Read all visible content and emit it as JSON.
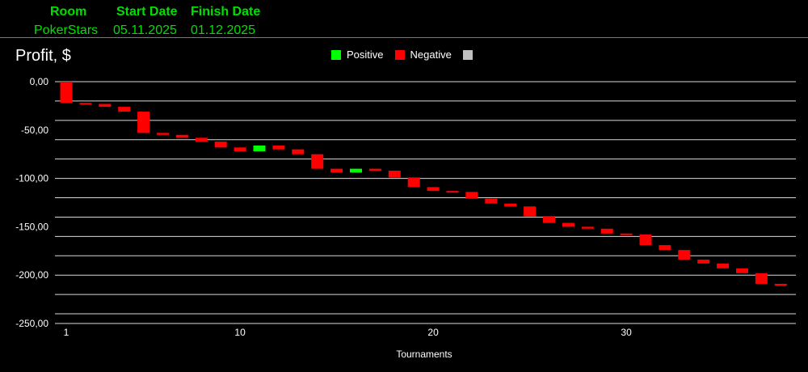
{
  "header": {
    "columns": [
      {
        "label": "Room",
        "value": "PokerStars"
      },
      {
        "label": "Start Date",
        "value": "05.11.2025"
      },
      {
        "label": "Finish Date",
        "value": "01.12.2025"
      }
    ]
  },
  "colors": {
    "positive": "#00ff00",
    "negative": "#ff0000",
    "neutral": "#c0c0c0",
    "header_text": "#00e000"
  },
  "chart_data": {
    "type": "bar",
    "subtype": "waterfall",
    "title": "Profit, $",
    "xlabel": "Tournaments",
    "ylabel": "",
    "ylim": [
      -250,
      0
    ],
    "y_ticks": [
      0,
      -50,
      -100,
      -150,
      -200,
      -250
    ],
    "y_tick_labels": [
      "0,00",
      "-50,00",
      "-100,00",
      "-150,00",
      "-200,00",
      "-250,00"
    ],
    "x_ticks": [
      1,
      10,
      20,
      30
    ],
    "legend": [
      {
        "name": "Positive",
        "color": "#00ff00"
      },
      {
        "name": "Negative",
        "color": "#ff0000"
      },
      {
        "name": "",
        "color": "#c0c0c0"
      }
    ],
    "legend_position": "top-center",
    "grid": true,
    "x": [
      1,
      2,
      3,
      4,
      5,
      6,
      7,
      8,
      9,
      10,
      11,
      12,
      13,
      14,
      15,
      16,
      17,
      18,
      19,
      20,
      21,
      22,
      23,
      24,
      25,
      26,
      27,
      28,
      29,
      30,
      31,
      32,
      33,
      34,
      35,
      36,
      37,
      38
    ],
    "values": [
      -22,
      -1,
      -3,
      -5,
      -22,
      -2,
      -3,
      -4,
      -6,
      -4,
      6,
      -4,
      -5,
      -15,
      -4,
      4,
      -2,
      -7,
      -10,
      -4,
      -1,
      -7,
      -5,
      -3,
      -10,
      -7,
      -4,
      -2,
      -5,
      -1,
      -11,
      -5,
      -10,
      -4,
      -5,
      -5,
      -11,
      -2
    ],
    "cumulative": [
      -22,
      -23,
      -26,
      -31,
      -53,
      -55,
      -58,
      -62,
      -68,
      -72,
      -66,
      -70,
      -75,
      -90,
      -94,
      -90,
      -92,
      -99,
      -109,
      -113,
      -114,
      -121,
      -126,
      -129,
      -139,
      -146,
      -150,
      -152,
      -157,
      -158,
      -169,
      -174,
      -184,
      -188,
      -193,
      -198,
      -209,
      -211
    ]
  }
}
